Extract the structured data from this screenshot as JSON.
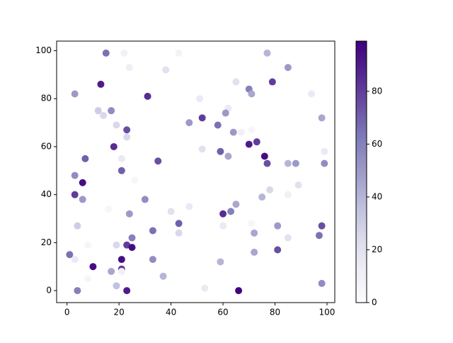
{
  "chart_data": {
    "type": "scatter",
    "x": [
      15,
      22,
      43,
      77,
      24,
      38,
      85,
      3,
      13,
      31,
      51,
      70,
      71,
      79,
      94,
      65,
      12,
      14,
      17,
      62,
      61,
      52,
      98,
      19,
      23,
      23,
      47,
      58,
      64,
      67,
      71,
      18,
      52,
      59,
      62,
      70,
      73,
      76,
      77,
      85,
      88,
      99,
      99,
      7,
      21,
      21,
      35,
      3,
      6,
      26,
      3,
      6,
      16,
      24,
      30,
      40,
      47,
      60,
      63,
      65,
      75,
      78,
      85,
      89,
      4,
      8,
      19,
      23,
      25,
      25,
      33,
      43,
      43,
      60,
      71,
      72,
      81,
      98,
      97,
      1,
      3,
      10,
      21,
      21,
      21,
      17,
      33,
      59,
      72,
      81,
      85,
      8,
      19,
      37,
      4,
      23,
      53,
      66,
      98
    ],
    "y": [
      99,
      99,
      99,
      99,
      93,
      92,
      93,
      82,
      86,
      81,
      80,
      84,
      82,
      87,
      82,
      87,
      75,
      73,
      75,
      76,
      74,
      72,
      72,
      69,
      67,
      64,
      70,
      69,
      66,
      66,
      67,
      60,
      59,
      58,
      56,
      61,
      62,
      56,
      53,
      53,
      53,
      53,
      58,
      55,
      55,
      50,
      54,
      48,
      45,
      46,
      40,
      38,
      34,
      32,
      38,
      33,
      35,
      32,
      33,
      36,
      39,
      42,
      40,
      44,
      27,
      19,
      19,
      19,
      18,
      22,
      25,
      28,
      24,
      27,
      28,
      24,
      27,
      27,
      23,
      15,
      13,
      10,
      13,
      9,
      8,
      8,
      13,
      12,
      16,
      17,
      22,
      5,
      2,
      6,
      0,
      0,
      1,
      0,
      3
    ],
    "c": [
      65,
      10,
      8,
      40,
      12,
      20,
      50,
      50,
      90,
      85,
      15,
      60,
      45,
      80,
      15,
      20,
      30,
      25,
      55,
      15,
      50,
      80,
      45,
      25,
      75,
      25,
      50,
      65,
      50,
      10,
      5,
      85,
      20,
      70,
      45,
      90,
      80,
      95,
      75,
      40,
      50,
      55,
      15,
      70,
      15,
      70,
      75,
      55,
      95,
      5,
      80,
      50,
      5,
      50,
      55,
      20,
      15,
      85,
      60,
      45,
      40,
      25,
      10,
      20,
      30,
      5,
      25,
      80,
      95,
      60,
      65,
      70,
      25,
      15,
      5,
      45,
      50,
      75,
      65,
      65,
      15,
      95,
      95,
      80,
      10,
      45,
      55,
      40,
      45,
      75,
      20,
      5,
      35,
      40,
      60,
      90,
      15,
      98,
      55
    ],
    "colormap": [
      "#fcfbfd",
      "#efedf5",
      "#dadaeb",
      "#bcbddc",
      "#9e9ac8",
      "#807dba",
      "#6a51a3",
      "#54278f",
      "#3f007d"
    ],
    "xlim": [
      -4,
      103
    ],
    "ylim": [
      -5,
      104
    ],
    "xticks": [
      0,
      20,
      40,
      60,
      80,
      100
    ],
    "yticks": [
      0,
      20,
      40,
      60,
      80,
      100
    ],
    "clim": [
      0,
      99
    ],
    "cticks": [
      0,
      20,
      40,
      60,
      80
    ]
  }
}
